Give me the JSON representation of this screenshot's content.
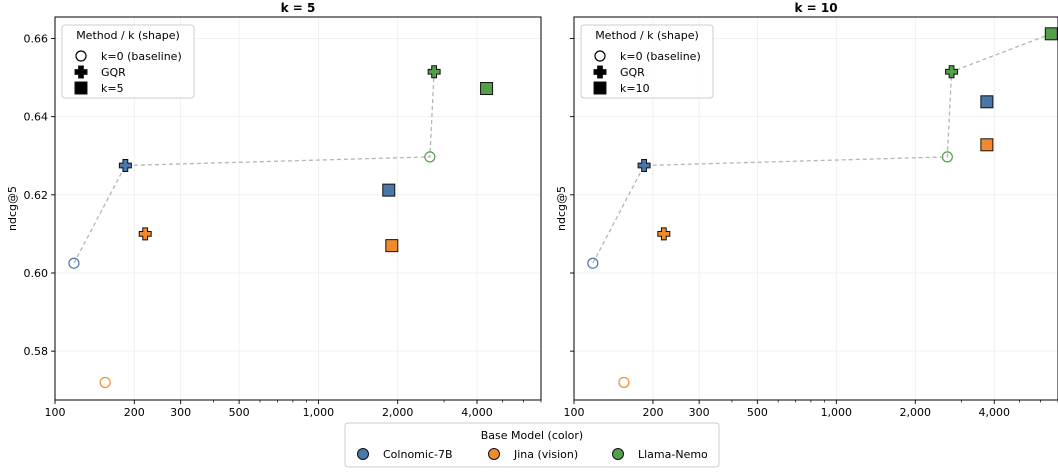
{
  "figure": {
    "legend_bottom": {
      "title": "Base Model (color)",
      "items": [
        {
          "label": "Colnomic-7B",
          "color": "#4a76a8"
        },
        {
          "label": "Jina (vision)",
          "color": "#f08a2c"
        },
        {
          "label": "Llama-Nemo",
          "color": "#52a04a"
        }
      ],
      "placement": "bottom-center"
    },
    "shared_ylabel": "ndcg@5"
  },
  "chart_data": [
    {
      "type": "scatter",
      "title": "k = 5",
      "xlabel": "",
      "ylabel": "ndcg@5",
      "x_scale": "log",
      "xlim": [
        100,
        7000
      ],
      "ylim": [
        0.5675,
        0.6655
      ],
      "x_ticks": [
        100,
        200,
        300,
        500,
        1000,
        2000,
        4000
      ],
      "x_tick_labels": [
        "100",
        "200",
        "300",
        "500",
        "1,000",
        "2,000",
        "4,000"
      ],
      "y_ticks": [
        0.58,
        0.6,
        0.62,
        0.64,
        0.66
      ],
      "y_tick_labels": [
        "0.58",
        "0.60",
        "0.62",
        "0.64",
        "0.66"
      ],
      "grid": true,
      "legend": {
        "title": "Method / k (shape)",
        "placement": "top-left",
        "entries": [
          {
            "label": "k=0 (baseline)",
            "shape": "circle-open"
          },
          {
            "label": "GQR",
            "shape": "plus"
          },
          {
            "label": "k=5",
            "shape": "square"
          }
        ]
      },
      "points": [
        {
          "model": "Colnomic-7B",
          "method": "k=0 (baseline)",
          "x": 118,
          "y": 0.6025
        },
        {
          "model": "Colnomic-7B",
          "method": "GQR",
          "x": 185,
          "y": 0.6275
        },
        {
          "model": "Colnomic-7B",
          "method": "k=5",
          "x": 1850,
          "y": 0.6212
        },
        {
          "model": "Jina (vision)",
          "method": "k=0 (baseline)",
          "x": 155,
          "y": 0.572
        },
        {
          "model": "Jina (vision)",
          "method": "GQR",
          "x": 220,
          "y": 0.61
        },
        {
          "model": "Jina (vision)",
          "method": "k=5",
          "x": 1900,
          "y": 0.607
        },
        {
          "model": "Llama-Nemo",
          "method": "k=0 (baseline)",
          "x": 2650,
          "y": 0.6297
        },
        {
          "model": "Llama-Nemo",
          "method": "GQR",
          "x": 2750,
          "y": 0.6515
        },
        {
          "model": "Llama-Nemo",
          "method": "k=5",
          "x": 4350,
          "y": 0.6472
        }
      ],
      "frontier": [
        [
          118,
          0.6025
        ],
        [
          185,
          0.6275
        ],
        [
          2650,
          0.6297
        ],
        [
          2750,
          0.6515
        ]
      ]
    },
    {
      "type": "scatter",
      "title": "k = 10",
      "xlabel": "",
      "ylabel": "ndcg@5",
      "x_scale": "log",
      "xlim": [
        100,
        7000
      ],
      "ylim": [
        0.5675,
        0.6655
      ],
      "x_ticks": [
        100,
        200,
        300,
        500,
        1000,
        2000,
        4000
      ],
      "x_tick_labels": [
        "100",
        "200",
        "300",
        "500",
        "1,000",
        "2,000",
        "4,000"
      ],
      "y_ticks": [
        0.58,
        0.6,
        0.62,
        0.64,
        0.66
      ],
      "y_tick_labels": [
        "",
        "",
        "",
        "",
        ""
      ],
      "grid": true,
      "legend": {
        "title": "Method / k (shape)",
        "placement": "top-left",
        "entries": [
          {
            "label": "k=0 (baseline)",
            "shape": "circle-open"
          },
          {
            "label": "GQR",
            "shape": "plus"
          },
          {
            "label": "k=10",
            "shape": "square"
          }
        ]
      },
      "points": [
        {
          "model": "Colnomic-7B",
          "method": "k=0 (baseline)",
          "x": 118,
          "y": 0.6025
        },
        {
          "model": "Colnomic-7B",
          "method": "GQR",
          "x": 185,
          "y": 0.6275
        },
        {
          "model": "Colnomic-7B",
          "method": "k=10",
          "x": 3750,
          "y": 0.6438
        },
        {
          "model": "Jina (vision)",
          "method": "k=0 (baseline)",
          "x": 155,
          "y": 0.572
        },
        {
          "model": "Jina (vision)",
          "method": "GQR",
          "x": 220,
          "y": 0.61
        },
        {
          "model": "Jina (vision)",
          "method": "k=10",
          "x": 3750,
          "y": 0.6328
        },
        {
          "model": "Llama-Nemo",
          "method": "k=0 (baseline)",
          "x": 2650,
          "y": 0.6297
        },
        {
          "model": "Llama-Nemo",
          "method": "GQR",
          "x": 2750,
          "y": 0.6515
        },
        {
          "model": "Llama-Nemo",
          "method": "k=10",
          "x": 6600,
          "y": 0.6612
        }
      ],
      "frontier": [
        [
          118,
          0.6025
        ],
        [
          185,
          0.6275
        ],
        [
          2650,
          0.6297
        ],
        [
          2750,
          0.6515
        ],
        [
          6600,
          0.6612
        ]
      ]
    }
  ]
}
